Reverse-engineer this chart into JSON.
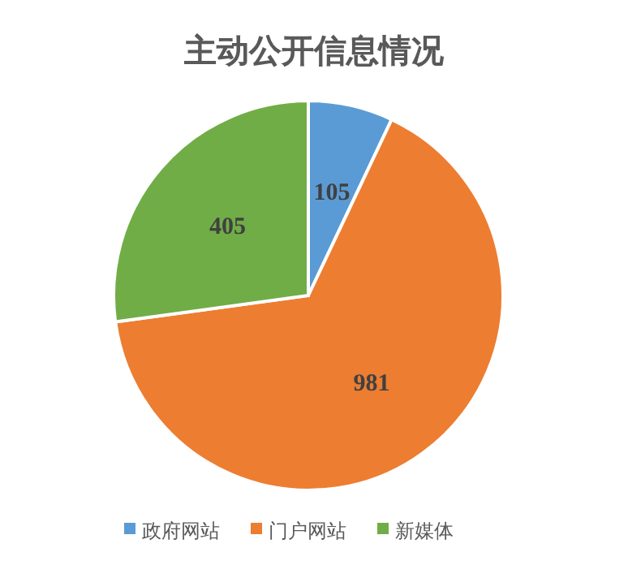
{
  "chart_data": {
    "type": "pie",
    "title": "主动公开信息情况",
    "categories": [
      "政府网站",
      "门户网站",
      "新媒体"
    ],
    "values": [
      105,
      981,
      405
    ],
    "colors": [
      "#5b9bd5",
      "#ed7d31",
      "#70ad47"
    ],
    "data_labels": true,
    "legend": "bottom"
  }
}
